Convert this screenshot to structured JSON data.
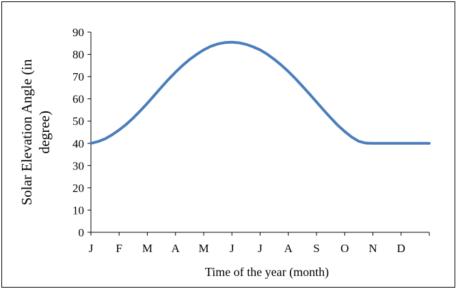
{
  "chart_data": {
    "type": "line",
    "title": "",
    "xlabel": "Time of the year (month)",
    "ylabel_lines": [
      "Solar Elevation Angle (in",
      "degree)"
    ],
    "ylim": [
      0,
      90
    ],
    "yticks": [
      0,
      10,
      20,
      30,
      40,
      50,
      60,
      70,
      80,
      90
    ],
    "categories": [
      "J",
      "F",
      "M",
      "A",
      "M",
      "J",
      "J",
      "A",
      "S",
      "O",
      "N",
      "D"
    ],
    "grid": false,
    "series": [
      {
        "color": "#4A7EBB",
        "x": [
          0,
          0.25,
          0.5,
          0.75,
          1,
          1.25,
          1.5,
          1.75,
          2,
          2.25,
          2.5,
          2.75,
          3,
          3.25,
          3.5,
          3.75,
          4,
          4.25,
          4.5,
          4.75,
          5,
          5.25,
          5.5,
          5.75,
          6,
          6.25,
          6.5,
          6.75,
          7,
          7.25,
          7.5,
          7.75,
          8,
          8.25,
          8.5,
          8.75,
          9,
          9.25,
          9.5,
          9.75,
          10,
          10.25,
          10.5,
          10.75,
          11,
          11.25,
          11.5,
          11.75,
          12
        ],
        "values": [
          40,
          40.8,
          42,
          43.8,
          46,
          48.5,
          51.4,
          54.6,
          58,
          61.6,
          65.2,
          68.7,
          72,
          75,
          77.7,
          80,
          82,
          83.6,
          84.7,
          85.3,
          85.5,
          85.2,
          84.5,
          83.4,
          82,
          80.1,
          77.8,
          75.2,
          72.3,
          69.1,
          65.7,
          62.2,
          58.6,
          55,
          51.5,
          48.2,
          45.3,
          42.8,
          40.9,
          40.1,
          40,
          40,
          40,
          40,
          40,
          40,
          40,
          40,
          40
        ]
      }
    ]
  }
}
